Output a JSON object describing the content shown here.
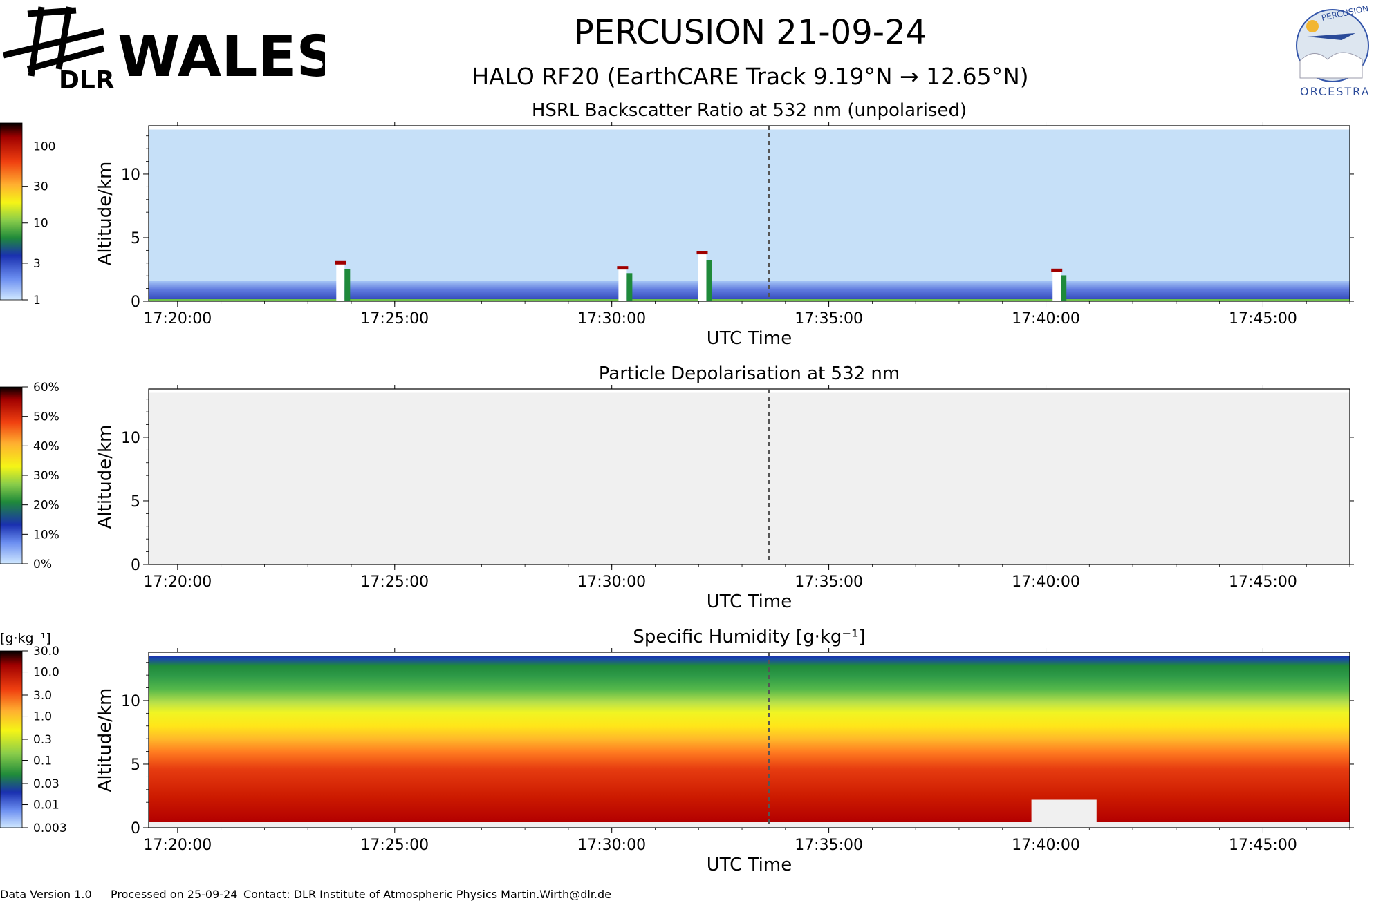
{
  "header": {
    "title": "PERCUSION  21-09-24",
    "subtitle": "HALO RF20 (EarthCARE Track  9.19°N → 12.65°N)",
    "brand_name": "WALES",
    "brand_org": "DLR",
    "partner_logo_top_text": "PERCUSION",
    "partner_logo_bottom_text": "ORCESTRA"
  },
  "footer": {
    "version": "Data Version 1.0",
    "processed": "Processed on 25-09-24",
    "contact": "Contact: DLR Institute of Atmospheric Physics  Martin.Wirth@dlr.de"
  },
  "colors": {
    "background_backscatter": "#c6e0f8",
    "background_depol": "#f0f0f0",
    "marker_line": "#555555"
  },
  "chart_data": [
    {
      "type": "heatmap",
      "title": "HSRL Backscatter Ratio at 532 nm (unpolarised)",
      "xlabel": "UTC Time",
      "ylabel": "Altitude/km",
      "x_ticks": [
        "17:20:00",
        "17:25:00",
        "17:30:00",
        "17:35:00",
        "17:40:00",
        "17:45:00"
      ],
      "y_ticks": [
        0,
        5,
        10
      ],
      "ylim": [
        0,
        13.8
      ],
      "xlim": [
        "17:19:20",
        "17:47:00"
      ],
      "marker_time": "17:33:37",
      "colorbar": {
        "labels": [
          "1",
          "3",
          "10",
          "30",
          "100"
        ],
        "scale": "log",
        "range": [
          1,
          200
        ]
      },
      "features": [
        {
          "kind": "boundary_layer_aerosol",
          "altitude_top_km": 1.6
        },
        {
          "kind": "cloud",
          "time": "17:23:45",
          "altitude_top_km": 3.0
        },
        {
          "kind": "cloud",
          "time": "17:30:15",
          "altitude_top_km": 2.6
        },
        {
          "kind": "cloud",
          "time": "17:32:05",
          "altitude_top_km": 3.8
        },
        {
          "kind": "cloud",
          "time": "17:40:15",
          "altitude_top_km": 2.4
        }
      ]
    },
    {
      "type": "heatmap",
      "title": "Particle Depolarisation at 532 nm",
      "xlabel": "UTC Time",
      "ylabel": "Altitude/km",
      "x_ticks": [
        "17:20:00",
        "17:25:00",
        "17:30:00",
        "17:35:00",
        "17:40:00",
        "17:45:00"
      ],
      "y_ticks": [
        0,
        5,
        10
      ],
      "ylim": [
        0,
        13.8
      ],
      "xlim": [
        "17:19:20",
        "17:47:00"
      ],
      "marker_time": "17:33:37",
      "colorbar": {
        "labels": [
          "0%",
          "10%",
          "20%",
          "30%",
          "40%",
          "50%",
          "60%"
        ],
        "scale": "linear",
        "range": [
          0,
          60
        ]
      }
    },
    {
      "type": "heatmap",
      "title": "Specific Humidity [g·kg⁻¹]",
      "xlabel": "UTC Time",
      "ylabel": "Altitude/km",
      "x_ticks": [
        "17:20:00",
        "17:25:00",
        "17:30:00",
        "17:35:00",
        "17:40:00",
        "17:45:00"
      ],
      "y_ticks": [
        0,
        5,
        10
      ],
      "ylim": [
        0,
        13.8
      ],
      "xlim": [
        "17:19:20",
        "17:47:00"
      ],
      "marker_time": "17:33:37",
      "colorbar": {
        "unit_label": "[g·kg⁻¹]",
        "labels": [
          "0.003",
          "0.01",
          "0.03",
          "0.1",
          "0.3",
          "1.0",
          "3.0",
          "10.0",
          "30.0"
        ],
        "scale": "log",
        "range": [
          0.003,
          30
        ]
      },
      "profile": [
        {
          "altitude_km": 0.5,
          "value": 18
        },
        {
          "altitude_km": 2,
          "value": 12
        },
        {
          "altitude_km": 4,
          "value": 6
        },
        {
          "altitude_km": 6,
          "value": 2.5
        },
        {
          "altitude_km": 8,
          "value": 0.8
        },
        {
          "altitude_km": 10,
          "value": 0.15
        },
        {
          "altitude_km": 12,
          "value": 0.03
        },
        {
          "altitude_km": 13.5,
          "value": 0.01
        }
      ]
    }
  ]
}
